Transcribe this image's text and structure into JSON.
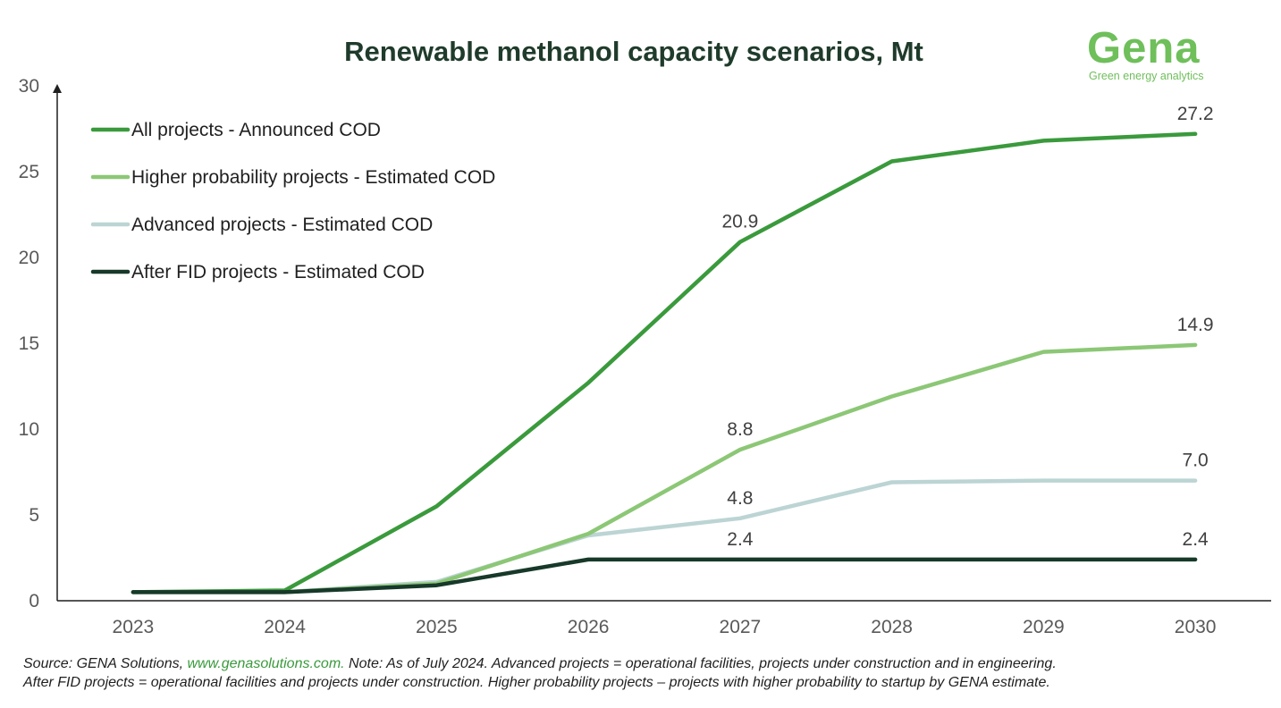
{
  "chart_data": {
    "type": "line",
    "title": "Renewable methanol capacity scenarios, Mt",
    "xlabel": "",
    "ylabel": "",
    "categories": [
      "2023",
      "2024",
      "2025",
      "2026",
      "2027",
      "2028",
      "2029",
      "2030"
    ],
    "ylim": [
      0,
      30
    ],
    "yticks": [
      "0",
      "5",
      "10",
      "15",
      "20",
      "25",
      "30"
    ],
    "grid": false,
    "legend_position": "top-left",
    "series": [
      {
        "name": "All projects - Announced COD",
        "color": "#3a9a3c",
        "values": [
          0.5,
          0.6,
          5.5,
          12.7,
          20.9,
          25.6,
          26.8,
          27.2
        ],
        "labels": [
          {
            "index": 4,
            "text": "20.9"
          },
          {
            "index": 7,
            "text": "27.2"
          }
        ]
      },
      {
        "name": "Higher probability projects - Estimated COD",
        "color": "#8cc776",
        "values": [
          0.5,
          0.5,
          1.0,
          3.9,
          8.8,
          11.9,
          14.5,
          14.9
        ],
        "labels": [
          {
            "index": 4,
            "text": "8.8"
          },
          {
            "index": 7,
            "text": "14.9"
          }
        ]
      },
      {
        "name": "Advanced projects - Estimated COD",
        "color": "#bcd4d4",
        "values": [
          0.5,
          0.5,
          1.1,
          3.8,
          4.8,
          6.9,
          7.0,
          7.0
        ],
        "labels": [
          {
            "index": 4,
            "text": "4.8"
          },
          {
            "index": 7,
            "text": "7.0"
          }
        ]
      },
      {
        "name": "After FID projects - Estimated COD",
        "color": "#17392a",
        "values": [
          0.5,
          0.5,
          0.9,
          2.4,
          2.4,
          2.4,
          2.4,
          2.4
        ],
        "labels": [
          {
            "index": 4,
            "text": "2.4"
          },
          {
            "index": 7,
            "text": "2.4"
          }
        ]
      }
    ]
  },
  "logo": {
    "word": "Gena",
    "tagline": "Green energy analytics"
  },
  "footnote": {
    "line1_prefix": "Source: GENA Solutions, ",
    "line1_link": "www.genasolutions.com.",
    "line1_suffix": " Note: As of July 2024. Advanced projects = operational facilities, projects under construction and in engineering.",
    "line2": "After FID projects = operational facilities and projects under construction. Higher probability projects – projects with higher probability to startup by GENA estimate."
  }
}
